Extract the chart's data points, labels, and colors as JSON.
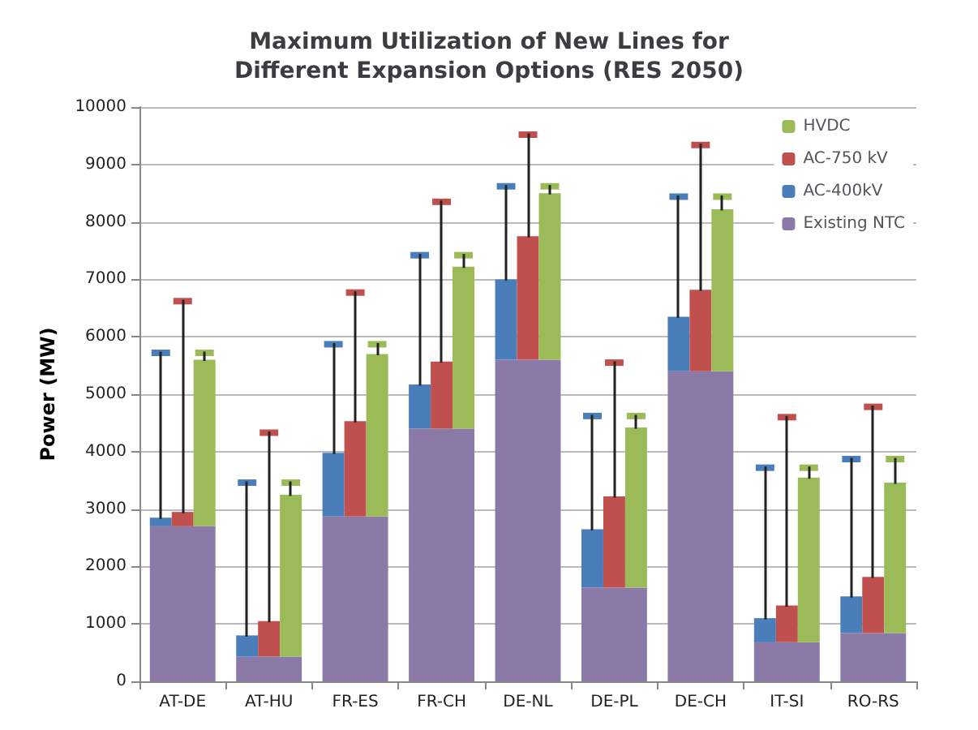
{
  "chart_data": {
    "type": "bar",
    "title": "Maximum Utilization of New Lines for\nDifferent Expansion Options (RES 2050)",
    "ylabel": "Power (MW)",
    "categories": [
      "AT-DE",
      "AT-HU",
      "FR-ES",
      "FR-CH",
      "DE-NL",
      "DE-PL",
      "DE-CH",
      "IT-SI",
      "RO-RS"
    ],
    "series": [
      {
        "name": "Existing NTC",
        "color": "#8b7aa8",
        "values": [
          2700,
          430,
          2870,
          4400,
          5600,
          1630,
          5400,
          680,
          840
        ]
      },
      {
        "name": "AC-400kV",
        "color": "#4a7ebb",
        "base": [
          2700,
          430,
          2870,
          4400,
          5600,
          1630,
          5400,
          680,
          840
        ],
        "values": [
          150,
          370,
          1110,
          770,
          1400,
          1020,
          950,
          420,
          640
        ],
        "errors": [
          [
            2850,
            5720
          ],
          [
            800,
            3460
          ],
          [
            3980,
            5870
          ],
          [
            5170,
            7420
          ],
          [
            7000,
            8620
          ],
          [
            2650,
            4620
          ],
          [
            6350,
            8440
          ],
          [
            1100,
            3720
          ],
          [
            1480,
            3870
          ]
        ]
      },
      {
        "name": "AC-750 kV",
        "color": "#c0504d",
        "base": [
          2700,
          430,
          2870,
          4400,
          5600,
          1630,
          5400,
          680,
          840
        ],
        "values": [
          250,
          620,
          1660,
          1170,
          2150,
          1590,
          1420,
          640,
          980
        ],
        "errors": [
          [
            2950,
            6620
          ],
          [
            1050,
            4330
          ],
          [
            4530,
            6770
          ],
          [
            5570,
            8350
          ],
          [
            7750,
            9520
          ],
          [
            3220,
            5550
          ],
          [
            6820,
            9340
          ],
          [
            1320,
            4600
          ],
          [
            1820,
            4780
          ]
        ]
      },
      {
        "name": "HVDC",
        "color": "#9bbb59",
        "base": [
          2700,
          430,
          2870,
          4400,
          5600,
          1630,
          5400,
          680,
          840
        ],
        "values": [
          2900,
          2820,
          2830,
          2820,
          2900,
          2790,
          2820,
          2870,
          2620
        ],
        "errors": [
          [
            5600,
            5720
          ],
          [
            3250,
            3460
          ],
          [
            5700,
            5870
          ],
          [
            7220,
            7420
          ],
          [
            8500,
            8620
          ],
          [
            4420,
            4620
          ],
          [
            8220,
            8440
          ],
          [
            3550,
            3720
          ],
          [
            3460,
            3870
          ]
        ]
      }
    ],
    "ylim": [
      0,
      10000
    ],
    "yticks": [
      0,
      1000,
      2000,
      3000,
      4000,
      5000,
      6000,
      7000,
      8000,
      9000,
      10000
    ],
    "grid": "y",
    "legend": "top right"
  }
}
